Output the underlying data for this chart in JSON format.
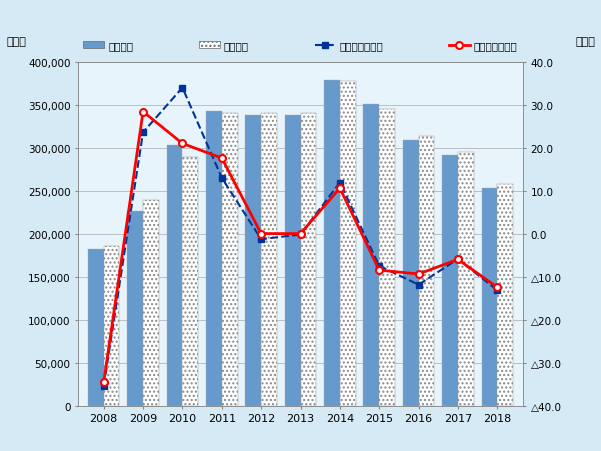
{
  "years": [
    2008,
    2009,
    2010,
    2011,
    2012,
    2013,
    2014,
    2015,
    2016,
    2017,
    2018
  ],
  "production": [
    182974,
    226356,
    303456,
    343296,
    339038,
    338720,
    379223,
    351085,
    309531,
    291563,
    253241
  ],
  "sales": [
    186005,
    239105,
    289444,
    340575,
    340984,
    341180,
    377648,
    345900,
    313809,
    295289,
    258571
  ],
  "prod_growth": [
    -35.4,
    23.7,
    34.1,
    13.1,
    -1.2,
    -0.1,
    12.0,
    -7.4,
    -11.8,
    -5.8,
    -13.1
  ],
  "sales_growth": [
    -34.5,
    28.5,
    21.1,
    17.7,
    0.1,
    0.1,
    10.7,
    -8.4,
    -9.3,
    -5.9,
    -12.4
  ],
  "bar_color_prod": "#6699CC",
  "bar_color_sales_hatch": "....",
  "line_color_prod": "#003399",
  "line_color_sales": "#FF0000",
  "bg_color": "#D6EAF5",
  "plot_bg_color": "#E8F4FB",
  "ylabel_left": "（台）",
  "ylabel_right": "（％）",
  "ylim_left": [
    0,
    400000
  ],
  "ylim_right": [
    -40,
    40
  ],
  "yticks_left": [
    0,
    50000,
    100000,
    150000,
    200000,
    250000,
    300000,
    350000,
    400000
  ],
  "yticks_right": [
    -40,
    -30,
    -20,
    -10,
    0,
    10,
    20,
    30,
    40
  ],
  "yticklabels_left": [
    "0",
    "50,000",
    "100,000",
    "150,000",
    "200,000",
    "250,000",
    "300,000",
    "350,000",
    "400,000"
  ],
  "yticklabels_right": [
    "△40.0",
    "△30.0",
    "△20.0",
    "△10.0",
    "0.0",
    "10.0",
    "20.0",
    "30.0",
    "40.0"
  ],
  "legend_labels": [
    "生産台数",
    "販売台数",
    "生産台数伸び率",
    "販売台数伸び率"
  ]
}
